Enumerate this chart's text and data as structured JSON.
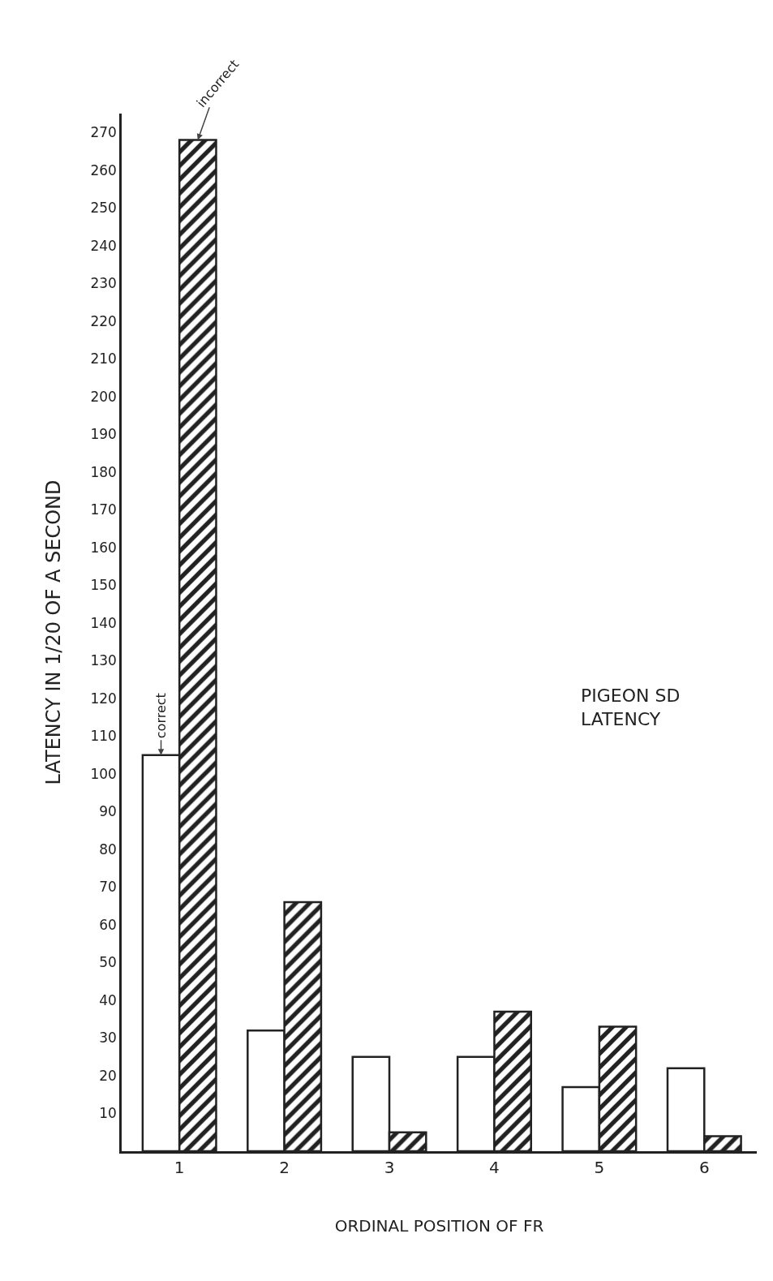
{
  "chart_data": {
    "type": "bar",
    "title": "PIGEON SD\nLATENCY",
    "xlabel": "ORDINAL POSITION OF FR",
    "ylabel": "LATENCY IN 1/20 OF A SECOND",
    "categories": [
      "1",
      "2",
      "3",
      "4",
      "5",
      "6"
    ],
    "series": [
      {
        "color": "#ffffff",
        "values": [
          105,
          32,
          25,
          25,
          17,
          22
        ]
      },
      {
        "color": "#222222",
        "values": [
          268,
          66,
          5,
          37,
          33,
          4
        ]
      }
    ],
    "ylim": [
      0,
      275
    ],
    "yticks": [
      10,
      20,
      30,
      40,
      50,
      60,
      70,
      80,
      90,
      100,
      110,
      120,
      130,
      140,
      150,
      160,
      170,
      180,
      190,
      200,
      210,
      220,
      230,
      240,
      250,
      260,
      270
    ],
    "annotations": [
      {
        "text": "correct",
        "x": "1",
        "y": 105
      },
      {
        "text": "incorrect",
        "x": "1",
        "y": 268
      }
    ],
    "grid": false
  }
}
